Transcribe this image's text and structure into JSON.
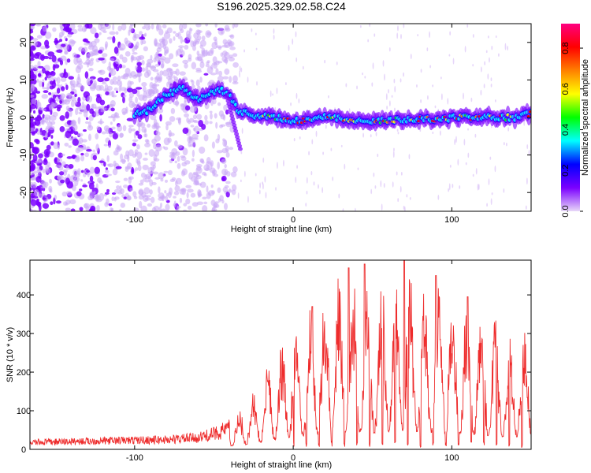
{
  "title": "S196.2025.329.02.58.C24",
  "chart_data": [
    {
      "type": "heatmap",
      "name": "spectrogram",
      "xlabel": "Height of straight line (km)",
      "ylabel": "Frequency (Hz)",
      "xlim": [
        -166,
        150
      ],
      "ylim": [
        -25,
        25
      ],
      "xticks": [
        -100,
        0,
        100
      ],
      "yticks": [
        -20,
        -10,
        0,
        10,
        20
      ],
      "colorbar": {
        "label": "Normalized spectral amplitude",
        "range": [
          0,
          0.92
        ],
        "ticks": [
          0.0,
          0.2,
          0.4,
          0.6,
          0.8
        ],
        "colors": [
          "#e8d8f8",
          "#7b00ff",
          "#0000ff",
          "#00ffff",
          "#00ff00",
          "#ffff00",
          "#ff8000",
          "#ff0000",
          "#ff0080"
        ]
      },
      "ridge": {
        "x": [
          -100,
          -90,
          -80,
          -70,
          -60,
          -50,
          -42,
          -35,
          -25,
          -10,
          0,
          20,
          50,
          80,
          110,
          140,
          150
        ],
        "y": [
          1,
          2,
          6,
          8,
          5,
          7,
          7,
          2,
          0.5,
          0,
          -1,
          0,
          -1,
          -0.5,
          0,
          0,
          1
        ]
      }
    },
    {
      "type": "line",
      "name": "snr",
      "xlabel": "Height of straight line (km)",
      "ylabel": "SNR (10 * v/v)",
      "xlim": [
        -166,
        150
      ],
      "ylim": [
        0,
        490
      ],
      "xticks": [
        -100,
        0,
        100
      ],
      "yticks": [
        0,
        100,
        200,
        300,
        400
      ],
      "color": "#ee2c2c",
      "envelope": {
        "x": [
          -166,
          -120,
          -80,
          -60,
          -50,
          -40,
          -30,
          -20,
          -10,
          0,
          10,
          20,
          30,
          40,
          50,
          60,
          70,
          80,
          90,
          100,
          110,
          120,
          130,
          140,
          150
        ],
        "y": [
          18,
          22,
          25,
          30,
          40,
          55,
          80,
          120,
          170,
          210,
          240,
          270,
          300,
          290,
          280,
          300,
          310,
          290,
          280,
          270,
          260,
          240,
          220,
          200,
          260
        ]
      },
      "peaks": [
        {
          "x": 12,
          "y": 370
        },
        {
          "x": 35,
          "y": 470
        },
        {
          "x": 45,
          "y": 480
        },
        {
          "x": 70,
          "y": 490
        },
        {
          "x": 90,
          "y": 450
        },
        {
          "x": 110,
          "y": 395
        }
      ]
    }
  ]
}
